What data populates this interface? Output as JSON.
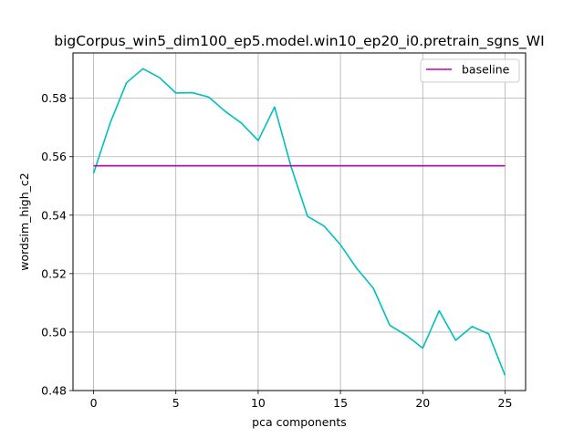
{
  "chart_data": {
    "type": "line",
    "title": "bigCorpus_win5_dim100_ep5.model.win10_ep20_i0.pretrain_sgns_WI",
    "xlabel": "pca components",
    "ylabel": "wordsim_high_c2",
    "xlim": [
      -1.25,
      26.25
    ],
    "ylim": [
      0.48,
      0.5955
    ],
    "xticks": [
      0,
      5,
      10,
      15,
      20,
      25
    ],
    "yticks": [
      0.48,
      0.5,
      0.52,
      0.54,
      0.56,
      0.58
    ],
    "xtick_labels": [
      "0",
      "5",
      "10",
      "15",
      "20",
      "25"
    ],
    "ytick_labels": [
      "0.48",
      "0.50",
      "0.52",
      "0.54",
      "0.56",
      "0.58"
    ],
    "grid": true,
    "legend": {
      "position": "top-right",
      "entries": [
        "baseline"
      ]
    },
    "series": [
      {
        "color": "#00bfbf",
        "x": [
          0,
          1,
          2,
          3,
          4,
          5,
          6,
          7,
          8,
          9,
          10,
          11,
          12,
          13,
          14,
          15,
          16,
          17,
          18,
          19,
          20,
          21,
          22,
          23,
          24,
          25
        ],
        "y": [
          0.5543,
          0.5714,
          0.5853,
          0.5901,
          0.5871,
          0.5818,
          0.5819,
          0.5804,
          0.5755,
          0.5714,
          0.5655,
          0.577,
          0.5566,
          0.5396,
          0.5363,
          0.5299,
          0.5217,
          0.515,
          0.5023,
          0.4989,
          0.4945,
          0.5073,
          0.4972,
          0.5019,
          0.4994,
          0.4852
        ]
      },
      {
        "name": "baseline",
        "color": "#bf00bf",
        "x": [
          0,
          25
        ],
        "y": [
          0.5569,
          0.5569
        ]
      }
    ]
  }
}
